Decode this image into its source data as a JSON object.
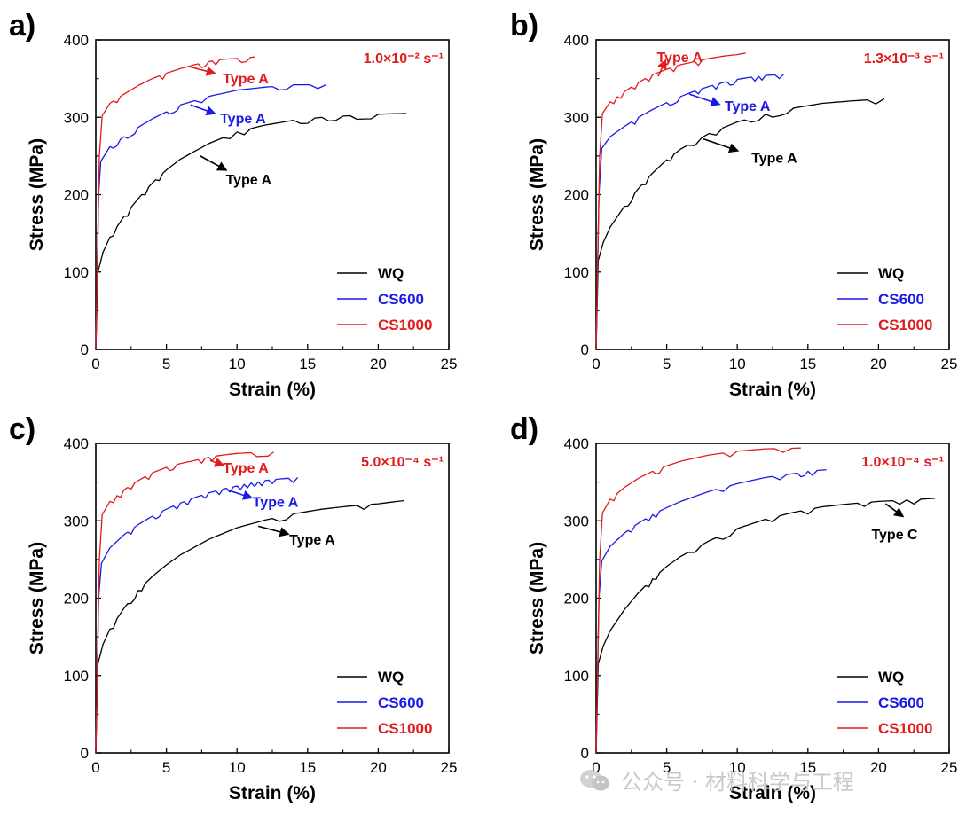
{
  "chart_data": [
    {
      "panel": "a)",
      "type": "line",
      "xlabel": "Strain (%)",
      "ylabel": "Stress (MPa)",
      "xlim": [
        0,
        25
      ],
      "ylim": [
        0,
        400
      ],
      "xticks": [
        0,
        5,
        10,
        15,
        20,
        25
      ],
      "yticks": [
        0,
        100,
        200,
        300,
        400
      ],
      "rate_label": "1.0×10⁻² s⁻¹",
      "legend_position": "bottom-right",
      "series": [
        {
          "name": "WQ",
          "color": "#000000",
          "x": [
            0,
            0.15,
            0.5,
            1,
            2,
            3,
            4,
            5,
            6,
            8,
            10,
            12,
            14,
            16,
            18,
            20,
            22
          ],
          "y": [
            0,
            100,
            125,
            145,
            172,
            195,
            215,
            232,
            246,
            266,
            281,
            290,
            296,
            300,
            302,
            304,
            305
          ]
        },
        {
          "name": "CS600",
          "color": "#1a1ae6",
          "x": [
            0,
            0.2,
            0.35,
            1,
            2,
            3,
            4,
            5,
            6,
            8,
            10,
            12,
            14,
            16.3
          ],
          "y": [
            0,
            200,
            243,
            262,
            275,
            287,
            298,
            307,
            316,
            327,
            335,
            339,
            342,
            342
          ]
        },
        {
          "name": "CS1000",
          "color": "#e01b1b",
          "x": [
            0,
            0.25,
            0.45,
            1,
            2,
            3,
            4,
            5,
            6,
            7,
            8,
            9,
            10,
            11.3
          ],
          "y": [
            0,
            250,
            302,
            318,
            330,
            341,
            350,
            357,
            363,
            368,
            372,
            375,
            376,
            378
          ]
        }
      ],
      "annotations": [
        {
          "text": "Type A",
          "color": "#e01b1b",
          "x": 9.0,
          "y": 351,
          "arrow_from": [
            6.7,
            365
          ],
          "arrow_to": [
            8.4,
            357
          ]
        },
        {
          "text": "Type A",
          "color": "#1a1ae6",
          "x": 8.8,
          "y": 299,
          "arrow_from": [
            6.7,
            316
          ],
          "arrow_to": [
            8.4,
            305
          ]
        },
        {
          "text": "Type A",
          "color": "#000000",
          "x": 9.2,
          "y": 220,
          "arrow_from": [
            7.4,
            250
          ],
          "arrow_to": [
            9.2,
            232
          ]
        }
      ]
    },
    {
      "panel": "b)",
      "type": "line",
      "xlabel": "Strain (%)",
      "ylabel": "Stress (MPa)",
      "xlim": [
        0,
        25
      ],
      "ylim": [
        0,
        400
      ],
      "xticks": [
        0,
        5,
        10,
        15,
        20,
        25
      ],
      "yticks": [
        0,
        100,
        200,
        300,
        400
      ],
      "rate_label": "1.3×10⁻³ s⁻¹",
      "legend_position": "bottom-right",
      "series": [
        {
          "name": "WQ",
          "color": "#000000",
          "x": [
            0,
            0.15,
            0.5,
            1,
            2,
            3,
            4,
            5,
            6,
            8,
            10,
            12,
            14,
            16,
            18,
            20.4
          ],
          "y": [
            0,
            115,
            138,
            158,
            185,
            208,
            228,
            245,
            259,
            279,
            294,
            304,
            312,
            318,
            321,
            324
          ]
        },
        {
          "name": "CS600",
          "color": "#1a1ae6",
          "x": [
            0,
            0.2,
            0.4,
            1,
            2,
            3,
            4,
            5,
            6,
            7,
            8,
            9,
            10,
            11,
            12,
            13.3
          ],
          "y": [
            0,
            200,
            260,
            275,
            288,
            300,
            310,
            319,
            327,
            334,
            340,
            345,
            349,
            352,
            354,
            356
          ]
        },
        {
          "name": "CS1000",
          "color": "#e01b1b",
          "x": [
            0,
            0.25,
            0.45,
            1,
            2,
            3,
            4,
            5,
            6,
            7,
            8,
            9,
            10,
            10.6
          ],
          "y": [
            0,
            250,
            305,
            320,
            333,
            345,
            355,
            362,
            368,
            372,
            376,
            379,
            381,
            383
          ]
        }
      ],
      "annotations": [
        {
          "text": "Type A",
          "color": "#e01b1b",
          "x": 4.3,
          "y": 378,
          "arrow_from": [
            4.4,
            353
          ],
          "arrow_to": [
            4.9,
            373
          ]
        },
        {
          "text": "Type A",
          "color": "#1a1ae6",
          "x": 9.1,
          "y": 315,
          "arrow_from": [
            6.6,
            330
          ],
          "arrow_to": [
            8.7,
            317
          ]
        },
        {
          "text": "Type A",
          "color": "#000000",
          "x": 11,
          "y": 248,
          "arrow_from": [
            7.6,
            272
          ],
          "arrow_to": [
            10,
            257
          ]
        }
      ]
    },
    {
      "panel": "c)",
      "type": "line",
      "xlabel": "Strain (%)",
      "ylabel": "Stress (MPa)",
      "xlim": [
        0,
        25
      ],
      "ylim": [
        0,
        400
      ],
      "xticks": [
        0,
        5,
        10,
        15,
        20,
        25
      ],
      "yticks": [
        0,
        100,
        200,
        300,
        400
      ],
      "rate_label": "5.0×10⁻⁴ s⁻¹",
      "legend_position": "bottom-right",
      "series": [
        {
          "name": "WQ",
          "color": "#000000",
          "x": [
            0,
            0.15,
            0.5,
            1,
            2,
            3,
            4,
            5,
            6,
            8,
            10,
            12,
            14,
            16,
            18,
            20,
            21.8
          ],
          "y": [
            0,
            115,
            140,
            160,
            187,
            210,
            228,
            243,
            256,
            276,
            291,
            301,
            309,
            315,
            319,
            322,
            326
          ]
        },
        {
          "name": "CS600",
          "color": "#1a1ae6",
          "x": [
            0,
            0.2,
            0.4,
            1,
            2,
            3,
            4,
            5,
            6,
            7,
            8,
            9,
            10,
            11,
            12,
            13,
            14.3
          ],
          "y": [
            0,
            200,
            245,
            265,
            282,
            295,
            306,
            315,
            323,
            330,
            336,
            341,
            345,
            349,
            352,
            354,
            356
          ]
        },
        {
          "name": "CS1000",
          "color": "#e01b1b",
          "x": [
            0,
            0.25,
            0.45,
            1,
            2,
            3,
            4,
            5,
            6,
            7,
            8,
            9,
            10,
            11,
            12.6
          ],
          "y": [
            0,
            250,
            308,
            325,
            340,
            352,
            362,
            369,
            374,
            378,
            382,
            385,
            387,
            388,
            389
          ]
        }
      ],
      "annotations": [
        {
          "text": "Type A",
          "color": "#e01b1b",
          "x": 9.0,
          "y": 369,
          "arrow_from": [
            8.1,
            378
          ],
          "arrow_to": [
            9.0,
            372
          ]
        },
        {
          "text": "Type A",
          "color": "#1a1ae6",
          "x": 11.1,
          "y": 325,
          "arrow_from": [
            9.3,
            340
          ],
          "arrow_to": [
            11,
            330
          ]
        },
        {
          "text": "Type A",
          "color": "#000000",
          "x": 13.7,
          "y": 276,
          "arrow_from": [
            11.5,
            293
          ],
          "arrow_to": [
            13.6,
            283
          ]
        }
      ]
    },
    {
      "panel": "d)",
      "type": "line",
      "xlabel": "Strain (%)",
      "ylabel": "Stress (MPa)",
      "xlim": [
        0,
        25
      ],
      "ylim": [
        0,
        400
      ],
      "xticks": [
        0,
        5,
        10,
        15,
        20,
        25
      ],
      "yticks": [
        0,
        100,
        200,
        300,
        400
      ],
      "rate_label": "1.0×10⁻⁴ s⁻¹",
      "legend_position": "bottom-right",
      "series": [
        {
          "name": "WQ",
          "color": "#000000",
          "x": [
            0,
            0.15,
            0.5,
            1,
            2,
            3,
            4,
            5,
            6,
            8,
            10,
            12,
            14,
            16,
            18,
            20,
            22,
            24
          ],
          "y": [
            0,
            115,
            138,
            158,
            185,
            207,
            225,
            241,
            254,
            274,
            290,
            302,
            311,
            318,
            322,
            325,
            327,
            329
          ]
        },
        {
          "name": "CS600",
          "color": "#1a1ae6",
          "x": [
            0,
            0.2,
            0.4,
            1,
            2,
            3,
            4,
            5,
            6,
            8,
            10,
            12,
            14,
            15,
            16.3
          ],
          "y": [
            0,
            200,
            248,
            267,
            284,
            297,
            308,
            317,
            325,
            338,
            348,
            356,
            361,
            364,
            366
          ]
        },
        {
          "name": "CS1000",
          "color": "#e01b1b",
          "x": [
            0,
            0.25,
            0.45,
            1,
            2,
            3,
            4,
            5,
            6,
            8,
            10,
            12,
            14.5
          ],
          "y": [
            0,
            250,
            310,
            328,
            343,
            355,
            364,
            371,
            377,
            385,
            390,
            393,
            394
          ]
        }
      ],
      "annotations": [
        {
          "text": "Type C",
          "color": "#000000",
          "x": 19.5,
          "y": 283,
          "arrow_from": [
            20.5,
            322
          ],
          "arrow_to": [
            21.7,
            306
          ]
        }
      ]
    }
  ],
  "watermark": {
    "text": "公众号 · 材料科学与工程",
    "icon": "wechat-icon"
  }
}
